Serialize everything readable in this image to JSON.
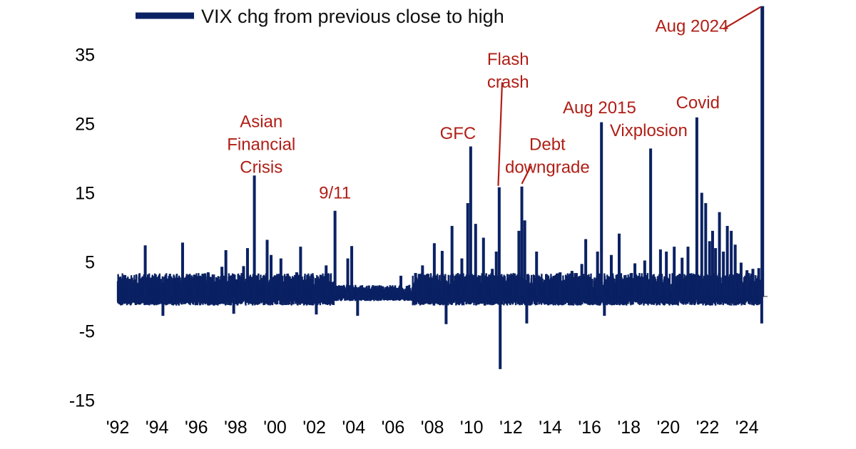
{
  "colors": {
    "series": "#0a2163",
    "annotation": "#b01e16",
    "axis": "#555555",
    "text": "#000000"
  },
  "chart_data": {
    "type": "bar",
    "title": "",
    "xlabel": "",
    "ylabel": "",
    "ylim": [
      -15,
      43
    ],
    "xlim": [
      1992,
      2024.9
    ],
    "yticks": [
      35,
      25,
      15,
      5,
      -5,
      -15
    ],
    "xtick_labels": [
      "'92",
      "'94",
      "'96",
      "'98",
      "'00",
      "'02",
      "'04",
      "'06",
      "'08",
      "'10",
      "'12",
      "'14",
      "'16",
      "'18",
      "'20",
      "'22",
      "'24"
    ],
    "xtick_years": [
      1992,
      1994,
      1996,
      1998,
      2000,
      2002,
      2004,
      2006,
      2008,
      2010,
      2012,
      2014,
      2016,
      2018,
      2020,
      2022,
      2024
    ],
    "legend": {
      "label": "VIX chg from previous close to high",
      "position": "top-left"
    },
    "baseline_noise_range": [
      -1.5,
      3
    ],
    "series": [
      {
        "name": "VIX chg from previous close to high",
        "spikes": [
          {
            "date": "1992.6",
            "value": 2.5
          },
          {
            "date": "1993.4",
            "value": 7.4
          },
          {
            "date": "1994.3",
            "value": -2.8
          },
          {
            "date": "1994.7",
            "value": 2.9
          },
          {
            "date": "1995.3",
            "value": 7.8
          },
          {
            "date": "1995.9",
            "value": 3.1
          },
          {
            "date": "1996.6",
            "value": 3.5
          },
          {
            "date": "1997.3",
            "value": 4.3
          },
          {
            "date": "1997.5",
            "value": 6.7
          },
          {
            "date": "1997.9",
            "value": -2.5
          },
          {
            "date": "1998.4",
            "value": 4.4
          },
          {
            "date": "1998.6",
            "value": 7.0
          },
          {
            "date": "1998.95",
            "value": 17.5
          },
          {
            "date": "1999.6",
            "value": 8.2
          },
          {
            "date": "1999.8",
            "value": 6.0
          },
          {
            "date": "2000.3",
            "value": 5.5
          },
          {
            "date": "2001.1",
            "value": 3.5
          },
          {
            "date": "2001.3",
            "value": 7.2
          },
          {
            "date": "2002.1",
            "value": -2.6
          },
          {
            "date": "2002.6",
            "value": 4.5
          },
          {
            "date": "2003.05",
            "value": 12.4
          },
          {
            "date": "2003.7",
            "value": 5.5
          },
          {
            "date": "2003.9",
            "value": 7.3
          },
          {
            "date": "2004.2",
            "value": -2.8
          },
          {
            "date": "2006.4",
            "value": 3.0
          },
          {
            "date": "2007.5",
            "value": 4.5
          },
          {
            "date": "2008.1",
            "value": 7.7
          },
          {
            "date": "2008.5",
            "value": 6.6
          },
          {
            "date": "2008.7",
            "value": -4.0
          },
          {
            "date": "2009.0",
            "value": 10.2
          },
          {
            "date": "2009.5",
            "value": 5.5
          },
          {
            "date": "2009.8",
            "value": 13.5
          },
          {
            "date": "2009.95",
            "value": 21.7
          },
          {
            "date": "2010.2",
            "value": 10.5
          },
          {
            "date": "2010.6",
            "value": 8.5
          },
          {
            "date": "2011.05",
            "value": 4.0
          },
          {
            "date": "2011.25",
            "value": 6.5
          },
          {
            "date": "2011.4",
            "value": 15.8
          },
          {
            "date": "2011.45",
            "value": -10.5
          },
          {
            "date": "2012.1",
            "value": 3.0
          },
          {
            "date": "2012.4",
            "value": 9.5
          },
          {
            "date": "2012.55",
            "value": 15.9
          },
          {
            "date": "2012.7",
            "value": 11.0
          },
          {
            "date": "2012.8",
            "value": -3.9
          },
          {
            "date": "2013.3",
            "value": 6.5
          },
          {
            "date": "2013.8",
            "value": 3.2
          },
          {
            "date": "2014.5",
            "value": 3.5
          },
          {
            "date": "2015.1",
            "value": 3.7
          },
          {
            "date": "2015.6",
            "value": 4.7
          },
          {
            "date": "2015.8",
            "value": 8.3
          },
          {
            "date": "2016.4",
            "value": 6.5
          },
          {
            "date": "2016.6",
            "value": 25.2
          },
          {
            "date": "2016.75",
            "value": -2.8
          },
          {
            "date": "2017.1",
            "value": 6.0
          },
          {
            "date": "2017.5",
            "value": 9.1
          },
          {
            "date": "2018.3",
            "value": 4.8
          },
          {
            "date": "2018.8",
            "value": 5.2
          },
          {
            "date": "2019.1",
            "value": 21.4
          },
          {
            "date": "2019.6",
            "value": 6.8
          },
          {
            "date": "2019.9",
            "value": 6.5
          },
          {
            "date": "2020.3",
            "value": 7.2
          },
          {
            "date": "2020.7",
            "value": 5.6
          },
          {
            "date": "2021.0",
            "value": 7.2
          },
          {
            "date": "2021.45",
            "value": 25.9
          },
          {
            "date": "2021.7",
            "value": 15.0
          },
          {
            "date": "2021.9",
            "value": 13.5
          },
          {
            "date": "2022.1",
            "value": 8.0
          },
          {
            "date": "2022.25",
            "value": 9.5
          },
          {
            "date": "2022.4",
            "value": 7.0
          },
          {
            "date": "2022.6",
            "value": 12.2
          },
          {
            "date": "2022.8",
            "value": 6.5
          },
          {
            "date": "2023.0",
            "value": 10.2
          },
          {
            "date": "2023.2",
            "value": 9.5
          },
          {
            "date": "2023.4",
            "value": 7.5
          },
          {
            "date": "2023.7",
            "value": 4.9
          },
          {
            "date": "2024.0",
            "value": 3.8
          },
          {
            "date": "2024.3",
            "value": 4.0
          },
          {
            "date": "2024.6",
            "value": 4.1
          },
          {
            "date": "2024.75",
            "value": -3.9
          },
          {
            "date": "2024.78",
            "value": 42.0
          }
        ]
      }
    ],
    "annotations": [
      {
        "lines": [
          "Asian",
          "Financial",
          "Crisis"
        ],
        "x": 1999.3,
        "y": 24.5
      },
      {
        "lines": [
          "9/11"
        ],
        "x": 2003.05,
        "y": 14.2
      },
      {
        "lines": [
          "GFC"
        ],
        "x": 2009.3,
        "y": 22.8
      },
      {
        "lines": [
          "Flash",
          "crash"
        ],
        "x": 2011.85,
        "y": 33.5
      },
      {
        "lines": [
          "Debt",
          "downgrade"
        ],
        "x": 2013.85,
        "y": 21.2
      },
      {
        "lines": [
          "Aug 2015"
        ],
        "x": 2016.5,
        "y": 26.5
      },
      {
        "lines": [
          "Vixplosion"
        ],
        "x": 2019.0,
        "y": 23.2
      },
      {
        "lines": [
          "Covid"
        ],
        "x": 2021.5,
        "y": 27.2
      },
      {
        "lines": [
          "Aug 2024"
        ],
        "x": 2021.2,
        "y": 38.3
      }
    ],
    "leader_lines": [
      {
        "from": [
          2011.55,
          31.0
        ],
        "to": [
          2011.35,
          16.0
        ]
      },
      {
        "from": [
          2012.55,
          16.3
        ],
        "to": [
          2013.0,
          18.8
        ]
      },
      {
        "from": [
          2022.8,
          38.7
        ],
        "to": [
          2024.7,
          41.9
        ]
      }
    ]
  }
}
